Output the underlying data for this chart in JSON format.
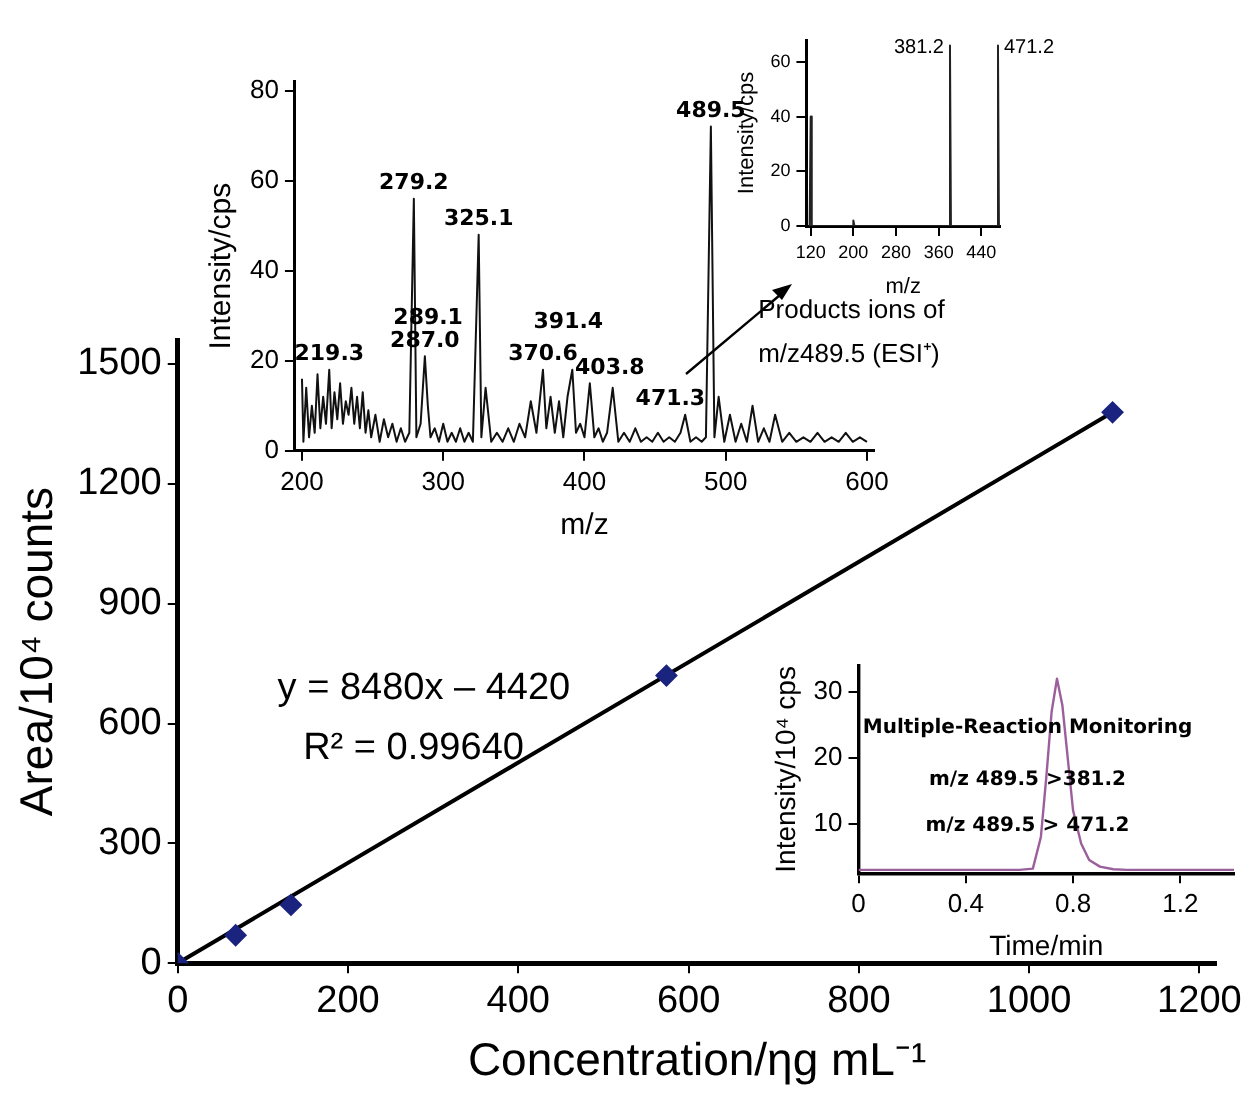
{
  "chart_data": [
    {
      "type": "scatter",
      "xlabel": "Concentration/ηg mL⁻¹",
      "ylabel": "Area/10⁴ counts",
      "xlim": [
        0,
        1220
      ],
      "ylim": [
        0,
        1560
      ],
      "xticks": [
        0,
        200,
        400,
        600,
        800,
        1000,
        1200
      ],
      "yticks": [
        0,
        300,
        600,
        900,
        1200,
        1500
      ],
      "grid": false,
      "legend": false,
      "series": [
        {
          "color": "#1a237e",
          "marker": "diamond",
          "x": [
            0,
            68,
            133,
            574,
            1098
          ],
          "values": [
            0,
            70,
            146,
            720,
            1379
          ]
        },
        {
          "type": "line",
          "color": "#000000",
          "marker": "none",
          "x": [
            0,
            1098
          ],
          "values": [
            0,
            1379
          ]
        }
      ],
      "annotations": [
        "y = 8480x – 4420",
        "R² = 0.99640"
      ]
    },
    {
      "type": "line",
      "xlabel": "m/z",
      "ylabel": "Intensity/cps",
      "xlim": [
        195,
        605
      ],
      "ylim": [
        0,
        82
      ],
      "xticks": [
        200,
        300,
        400,
        500,
        600
      ],
      "yticks": [
        0,
        20,
        40,
        60,
        80
      ],
      "grid": false,
      "legend": false,
      "series": [
        {
          "color": "#111111",
          "marker": "none",
          "x": [
            200,
            201,
            203,
            205,
            207,
            209,
            211,
            213,
            215,
            217,
            219.3,
            221,
            223,
            225,
            227,
            229,
            231,
            233,
            235,
            237,
            239,
            241,
            243,
            245,
            247,
            249,
            252,
            255,
            258,
            261,
            264,
            267,
            270,
            273,
            276,
            279.2,
            281,
            284,
            287.0,
            289.1,
            291,
            294,
            297,
            300,
            303,
            306,
            309,
            312,
            315,
            318,
            321,
            325.1,
            327,
            330,
            334,
            338,
            342,
            346,
            350,
            354,
            358,
            362,
            366,
            370.6,
            373,
            376,
            379,
            382,
            385,
            388,
            391.4,
            394,
            397,
            400,
            403.8,
            407,
            410,
            413,
            416,
            420,
            424,
            428,
            432,
            436,
            440,
            444,
            448,
            452,
            456,
            460,
            464,
            468,
            471.3,
            475,
            479,
            483,
            486,
            489.5,
            492,
            495,
            499,
            503,
            507,
            511,
            515,
            519,
            523,
            527,
            531,
            535,
            540,
            545,
            550,
            555,
            560,
            565,
            570,
            575,
            580,
            585,
            590,
            595,
            600
          ],
          "values": [
            16,
            2,
            14,
            3,
            10,
            4,
            17,
            5,
            12,
            6,
            18,
            5,
            13,
            7,
            15,
            6,
            11,
            8,
            14,
            6,
            12,
            5,
            13,
            4,
            9,
            3,
            8,
            2,
            7,
            3,
            6,
            2,
            5,
            2,
            4,
            56,
            3,
            6,
            21,
            10,
            3,
            5,
            2,
            6,
            2,
            4,
            2,
            5,
            2,
            4,
            2,
            48,
            3,
            14,
            2,
            4,
            2,
            5,
            2,
            6,
            3,
            11,
            4,
            18,
            5,
            12,
            4,
            11,
            3,
            12,
            18,
            4,
            6,
            3,
            15,
            3,
            5,
            2,
            4,
            14,
            2,
            4,
            2,
            5,
            2,
            3,
            2,
            4,
            2,
            3,
            2,
            4,
            8,
            2,
            3,
            2,
            3,
            72,
            3,
            12,
            2,
            8,
            2,
            6,
            2,
            10,
            2,
            5,
            2,
            8,
            2,
            4,
            2,
            3,
            2,
            4,
            2,
            3,
            2,
            4,
            2,
            3,
            2
          ]
        }
      ],
      "annotations": [
        {
          "text": "219.3",
          "x": 219.3,
          "y": 18
        },
        {
          "text": "279.2",
          "x": 279.2,
          "y": 56
        },
        "289.1",
        {
          "text": "287.0",
          "x": 287.0,
          "y": 21
        },
        {
          "text": "325.1",
          "x": 325.1,
          "y": 48
        },
        {
          "text": "370.6",
          "x": 370.6,
          "y": 18
        },
        {
          "text": "391.4",
          "x": 391.4,
          "y": 18
        },
        {
          "text": "403.8",
          "x": 403.8,
          "y": 15
        },
        {
          "text": "471.3",
          "x": 471.3,
          "y": 8
        },
        {
          "text": "489.5",
          "x": 489.5,
          "y": 72
        },
        "Products ions of",
        "m/z489.5 (ESI⁺)"
      ]
    },
    {
      "type": "line",
      "xlabel": "m/z",
      "ylabel": "Intensity/cps",
      "xlim": [
        112,
        475
      ],
      "ylim": [
        0,
        68
      ],
      "xticks": [
        120,
        200,
        280,
        360,
        440
      ],
      "yticks": [
        0,
        20,
        40,
        60
      ],
      "grid": false,
      "legend": false,
      "series": [
        {
          "color": "#222222",
          "marker": "none",
          "x": [
            118,
            120,
            122,
            198,
            200,
            202,
            379,
            381.2,
            383,
            469,
            471.2,
            473
          ],
          "values": [
            0,
            40,
            0,
            0,
            2,
            0,
            0,
            66,
            0,
            0,
            66,
            0
          ]
        }
      ],
      "annotations": [
        {
          "text": "381.2",
          "x": 381.2,
          "y": 66
        },
        {
          "text": "471.2",
          "x": 471.2,
          "y": 66
        }
      ]
    },
    {
      "type": "line",
      "xlabel": "Time/min",
      "ylabel": "Intensity/10⁴ cps",
      "xlim": [
        0,
        1.4
      ],
      "ylim": [
        2.5,
        34
      ],
      "xticks": [
        0,
        0.4,
        0.8,
        1.2
      ],
      "yticks": [
        10,
        20,
        30
      ],
      "grid": false,
      "legend": false,
      "series": [
        {
          "color": "#9b5f9b",
          "marker": "none",
          "x": [
            0,
            0.6,
            0.65,
            0.68,
            0.7,
            0.72,
            0.74,
            0.76,
            0.78,
            0.8,
            0.83,
            0.86,
            0.9,
            0.95,
            1.0,
            1.4
          ],
          "values": [
            3,
            3,
            3.2,
            8,
            17,
            27,
            32,
            28,
            20,
            12,
            7,
            4.5,
            3.5,
            3.1,
            3,
            3
          ]
        }
      ],
      "annotations": [
        "Multiple-Reaction Monitoring",
        "m/z 489.5 >381.2",
        "m/z 489.5 > 471.2"
      ]
    }
  ]
}
